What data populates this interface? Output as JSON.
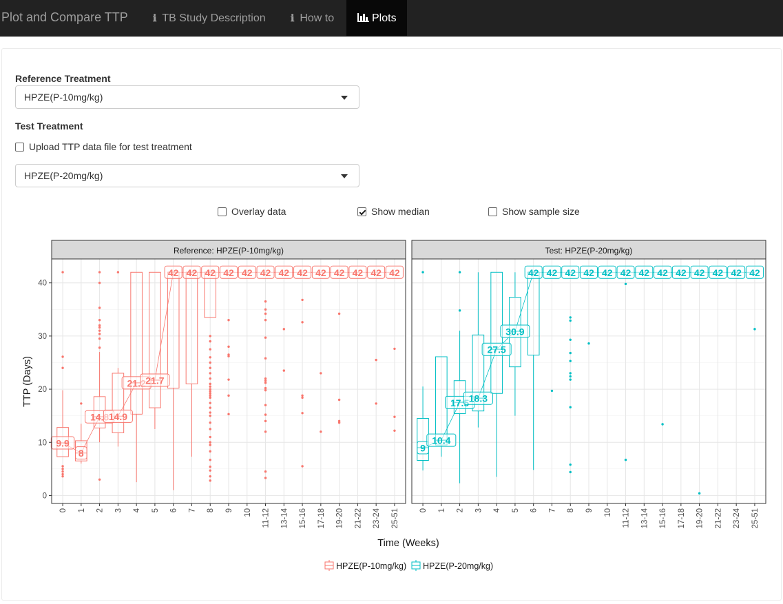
{
  "navbar": {
    "brand": "Plot and Compare TTP",
    "tabs": [
      {
        "label": "TB Study Description",
        "icon": "info-icon",
        "active": false
      },
      {
        "label": "How to",
        "icon": "info-icon",
        "active": false
      },
      {
        "label": "Plots",
        "icon": "bar-chart-icon",
        "active": true
      }
    ]
  },
  "controls": {
    "reference_label": "Reference Treatment",
    "reference_value": "HPZE(P-10mg/kg)",
    "test_label": "Test Treatment",
    "upload_label": "Upload TTP data file for test treatment",
    "upload_checked": false,
    "test_value": "HPZE(P-20mg/kg)",
    "overlay_label": "Overlay data",
    "overlay_checked": false,
    "median_label": "Show median",
    "median_checked": true,
    "sample_label": "Show sample size",
    "sample_checked": false
  },
  "chart_data": {
    "type": "box",
    "xlabel": "Time (Weeks)",
    "ylabel": "TTP (Days)",
    "ylim": [
      -1.5,
      44.5
    ],
    "yticks": [
      0,
      10,
      20,
      30,
      40
    ],
    "categories": [
      "0",
      "1",
      "2",
      "3",
      "4",
      "5",
      "6",
      "7",
      "8",
      "9",
      "10",
      "11-12",
      "13-14",
      "15-16",
      "17-18",
      "19-20",
      "21-22",
      "23-24",
      "25-51"
    ],
    "grid": true,
    "legend_position": "bottom",
    "panels": [
      {
        "title": "Reference: HPZE(P-10mg/kg)",
        "series": "HPZE(P-10mg/kg)",
        "color": "#F8766D",
        "boxes": [
          {
            "x": "0",
            "lower": 7.3,
            "q1": 7.3,
            "median": 9.9,
            "q3": 12.8,
            "upper": 19.8
          },
          {
            "x": "1",
            "lower": 6.0,
            "q1": 6.5,
            "median": 8.0,
            "q3": 10.3,
            "upper": 13.5
          },
          {
            "x": "2",
            "lower": 10.0,
            "q1": 12.7,
            "median": 14.8,
            "q3": 18.6,
            "upper": 27.0
          },
          {
            "x": "3",
            "lower": 9.2,
            "q1": 11.8,
            "median": 14.9,
            "q3": 23.0,
            "upper": 24.0
          },
          {
            "x": "4",
            "lower": 2.5,
            "q1": 15.3,
            "median": 21.2,
            "q3": 42.0,
            "upper": 42.0
          },
          {
            "x": "5",
            "lower": 12.5,
            "q1": 16.5,
            "median": 21.7,
            "q3": 42.0,
            "upper": 42.0
          },
          {
            "x": "6",
            "lower": 1.0,
            "q1": 20.2,
            "median": 42.0,
            "q3": 42.0,
            "upper": 42.0
          },
          {
            "x": "7",
            "lower": 7.3,
            "q1": 21.0,
            "median": 42.0,
            "q3": 42.0,
            "upper": 42.0
          },
          {
            "x": "8",
            "lower": 33.5,
            "q1": 33.5,
            "median": 42.0,
            "q3": 42.0,
            "upper": 42.0
          }
        ],
        "medians": [
          {
            "x": "0",
            "value": 9.9,
            "label": "9.9"
          },
          {
            "x": "1",
            "value": 8.0,
            "label": "8"
          },
          {
            "x": "2",
            "value": 14.8,
            "label": "14.8"
          },
          {
            "x": "3",
            "value": 14.9,
            "label": "14.9"
          },
          {
            "x": "4",
            "value": 21.2,
            "label": "21.2"
          },
          {
            "x": "5",
            "value": 21.7,
            "label": "21.7"
          },
          {
            "x": "6",
            "value": 42,
            "label": "42"
          },
          {
            "x": "7",
            "value": 42,
            "label": "42"
          },
          {
            "x": "8",
            "value": 42,
            "label": "42"
          },
          {
            "x": "9",
            "value": 42,
            "label": "42"
          },
          {
            "x": "10",
            "value": 42,
            "label": "42"
          },
          {
            "x": "11-12",
            "value": 42,
            "label": "42"
          },
          {
            "x": "13-14",
            "value": 42,
            "label": "42"
          },
          {
            "x": "15-16",
            "value": 42,
            "label": "42"
          },
          {
            "x": "17-18",
            "value": 42,
            "label": "42"
          },
          {
            "x": "19-20",
            "value": 42,
            "label": "42"
          },
          {
            "x": "21-22",
            "value": 42,
            "label": "42"
          },
          {
            "x": "23-24",
            "value": 42,
            "label": "42"
          },
          {
            "x": "25-51",
            "value": 42,
            "label": "42"
          }
        ],
        "outliers": [
          {
            "x": "0",
            "values": [
              42,
              26.1,
              24,
              5.5,
              5,
              4.5,
              4,
              3.6
            ]
          },
          {
            "x": "1",
            "values": [
              17.3
            ]
          },
          {
            "x": "2",
            "values": [
              42,
              40,
              35.3,
              33,
              32,
              31.6,
              31,
              30.4,
              29.5,
              27.8,
              3
            ]
          },
          {
            "x": "3",
            "values": [
              42
            ]
          },
          {
            "x": "8",
            "values": [
              30,
              29,
              27.5,
              26,
              25,
              24,
              23,
              22,
              21,
              20.5,
              20,
              19.6,
              19.2,
              18.8,
              18.4,
              17.4,
              16.5,
              15.6,
              15,
              13.7,
              12.5,
              11,
              10,
              9.5,
              8.3,
              6.7,
              5.4,
              4.7,
              3.6,
              2.8
            ]
          },
          {
            "x": "9",
            "values": [
              33,
              28,
              26.5,
              26.2,
              21.8,
              18.8,
              15.3
            ]
          },
          {
            "x": "11-12",
            "values": [
              36.5,
              35,
              34.2,
              33,
              29.7,
              25.8,
              22,
              21.6,
              21.2,
              20.2,
              19.8,
              17,
              15.2,
              14,
              12,
              4.5,
              3.3
            ]
          },
          {
            "x": "13-14",
            "values": [
              31.3,
              23.5
            ]
          },
          {
            "x": "15-16",
            "values": [
              36.8,
              32.6,
              18.8,
              18.4,
              15.5,
              5.5
            ]
          },
          {
            "x": "17-18",
            "values": [
              23,
              12
            ]
          },
          {
            "x": "19-20",
            "values": [
              34.2,
              18,
              14,
              13.7
            ]
          },
          {
            "x": "23-24",
            "values": [
              25.5,
              17.3
            ]
          },
          {
            "x": "25-51",
            "values": [
              27.6,
              14.8,
              12.2
            ]
          }
        ]
      },
      {
        "title": "Test: HPZE(P-20mg/kg)",
        "series": "HPZE(P-20mg/kg)",
        "color": "#00BFC4",
        "boxes": [
          {
            "x": "0",
            "lower": 4.7,
            "q1": 6.6,
            "median": 9.0,
            "q3": 14.5,
            "upper": 20.5
          },
          {
            "x": "1",
            "lower": 7.3,
            "q1": 9.5,
            "median": 10.4,
            "q3": 26.1,
            "upper": 26.1
          },
          {
            "x": "2",
            "lower": 2.3,
            "q1": 15.4,
            "median": 17.5,
            "q3": 21.6,
            "upper": 31.0
          },
          {
            "x": "3",
            "lower": 12.8,
            "q1": 15.9,
            "median": 18.3,
            "q3": 30.2,
            "upper": 42.0
          },
          {
            "x": "4",
            "lower": 3.5,
            "q1": 19.2,
            "median": 27.5,
            "q3": 42.0,
            "upper": 42.0
          },
          {
            "x": "5",
            "lower": 15.0,
            "q1": 24.2,
            "median": 30.9,
            "q3": 37.3,
            "upper": 42.0
          },
          {
            "x": "6",
            "lower": 4.8,
            "q1": 26.4,
            "median": 42.0,
            "q3": 42.0,
            "upper": 42.0
          }
        ],
        "medians": [
          {
            "x": "0",
            "value": 9.0,
            "label": "9"
          },
          {
            "x": "1",
            "value": 10.4,
            "label": "10.4"
          },
          {
            "x": "2",
            "value": 17.5,
            "label": "17.5"
          },
          {
            "x": "3",
            "value": 18.3,
            "label": "18.3"
          },
          {
            "x": "4",
            "value": 27.5,
            "label": "27.5"
          },
          {
            "x": "5",
            "value": 30.9,
            "label": "30.9"
          },
          {
            "x": "6",
            "value": 42,
            "label": "42"
          },
          {
            "x": "7",
            "value": 42,
            "label": "42"
          },
          {
            "x": "8",
            "value": 42,
            "label": "42"
          },
          {
            "x": "9",
            "value": 42,
            "label": "42"
          },
          {
            "x": "10",
            "value": 42,
            "label": "42"
          },
          {
            "x": "11-12",
            "value": 42,
            "label": "42"
          },
          {
            "x": "13-14",
            "value": 42,
            "label": "42"
          },
          {
            "x": "15-16",
            "value": 42,
            "label": "42"
          },
          {
            "x": "17-18",
            "value": 42,
            "label": "42"
          },
          {
            "x": "19-20",
            "value": 42,
            "label": "42"
          },
          {
            "x": "21-22",
            "value": 42,
            "label": "42"
          },
          {
            "x": "23-24",
            "value": 42,
            "label": "42"
          },
          {
            "x": "25-51",
            "value": 42,
            "label": "42"
          }
        ],
        "outliers": [
          {
            "x": "0",
            "values": [
              42
            ]
          },
          {
            "x": "2",
            "values": [
              42,
              34.8
            ]
          },
          {
            "x": "7",
            "values": [
              19.7
            ]
          },
          {
            "x": "8",
            "values": [
              33.5,
              32.9,
              29.3,
              26.8,
              25.3,
              23,
              22.4,
              21.8,
              16.6,
              5.8,
              4.4
            ]
          },
          {
            "x": "9",
            "values": [
              28.6
            ]
          },
          {
            "x": "11-12",
            "values": [
              39.8,
              6.7
            ]
          },
          {
            "x": "15-16",
            "values": [
              13.4
            ]
          },
          {
            "x": "19-20",
            "values": [
              0.4
            ]
          },
          {
            "x": "25-51",
            "values": [
              31.3
            ]
          }
        ]
      }
    ]
  }
}
